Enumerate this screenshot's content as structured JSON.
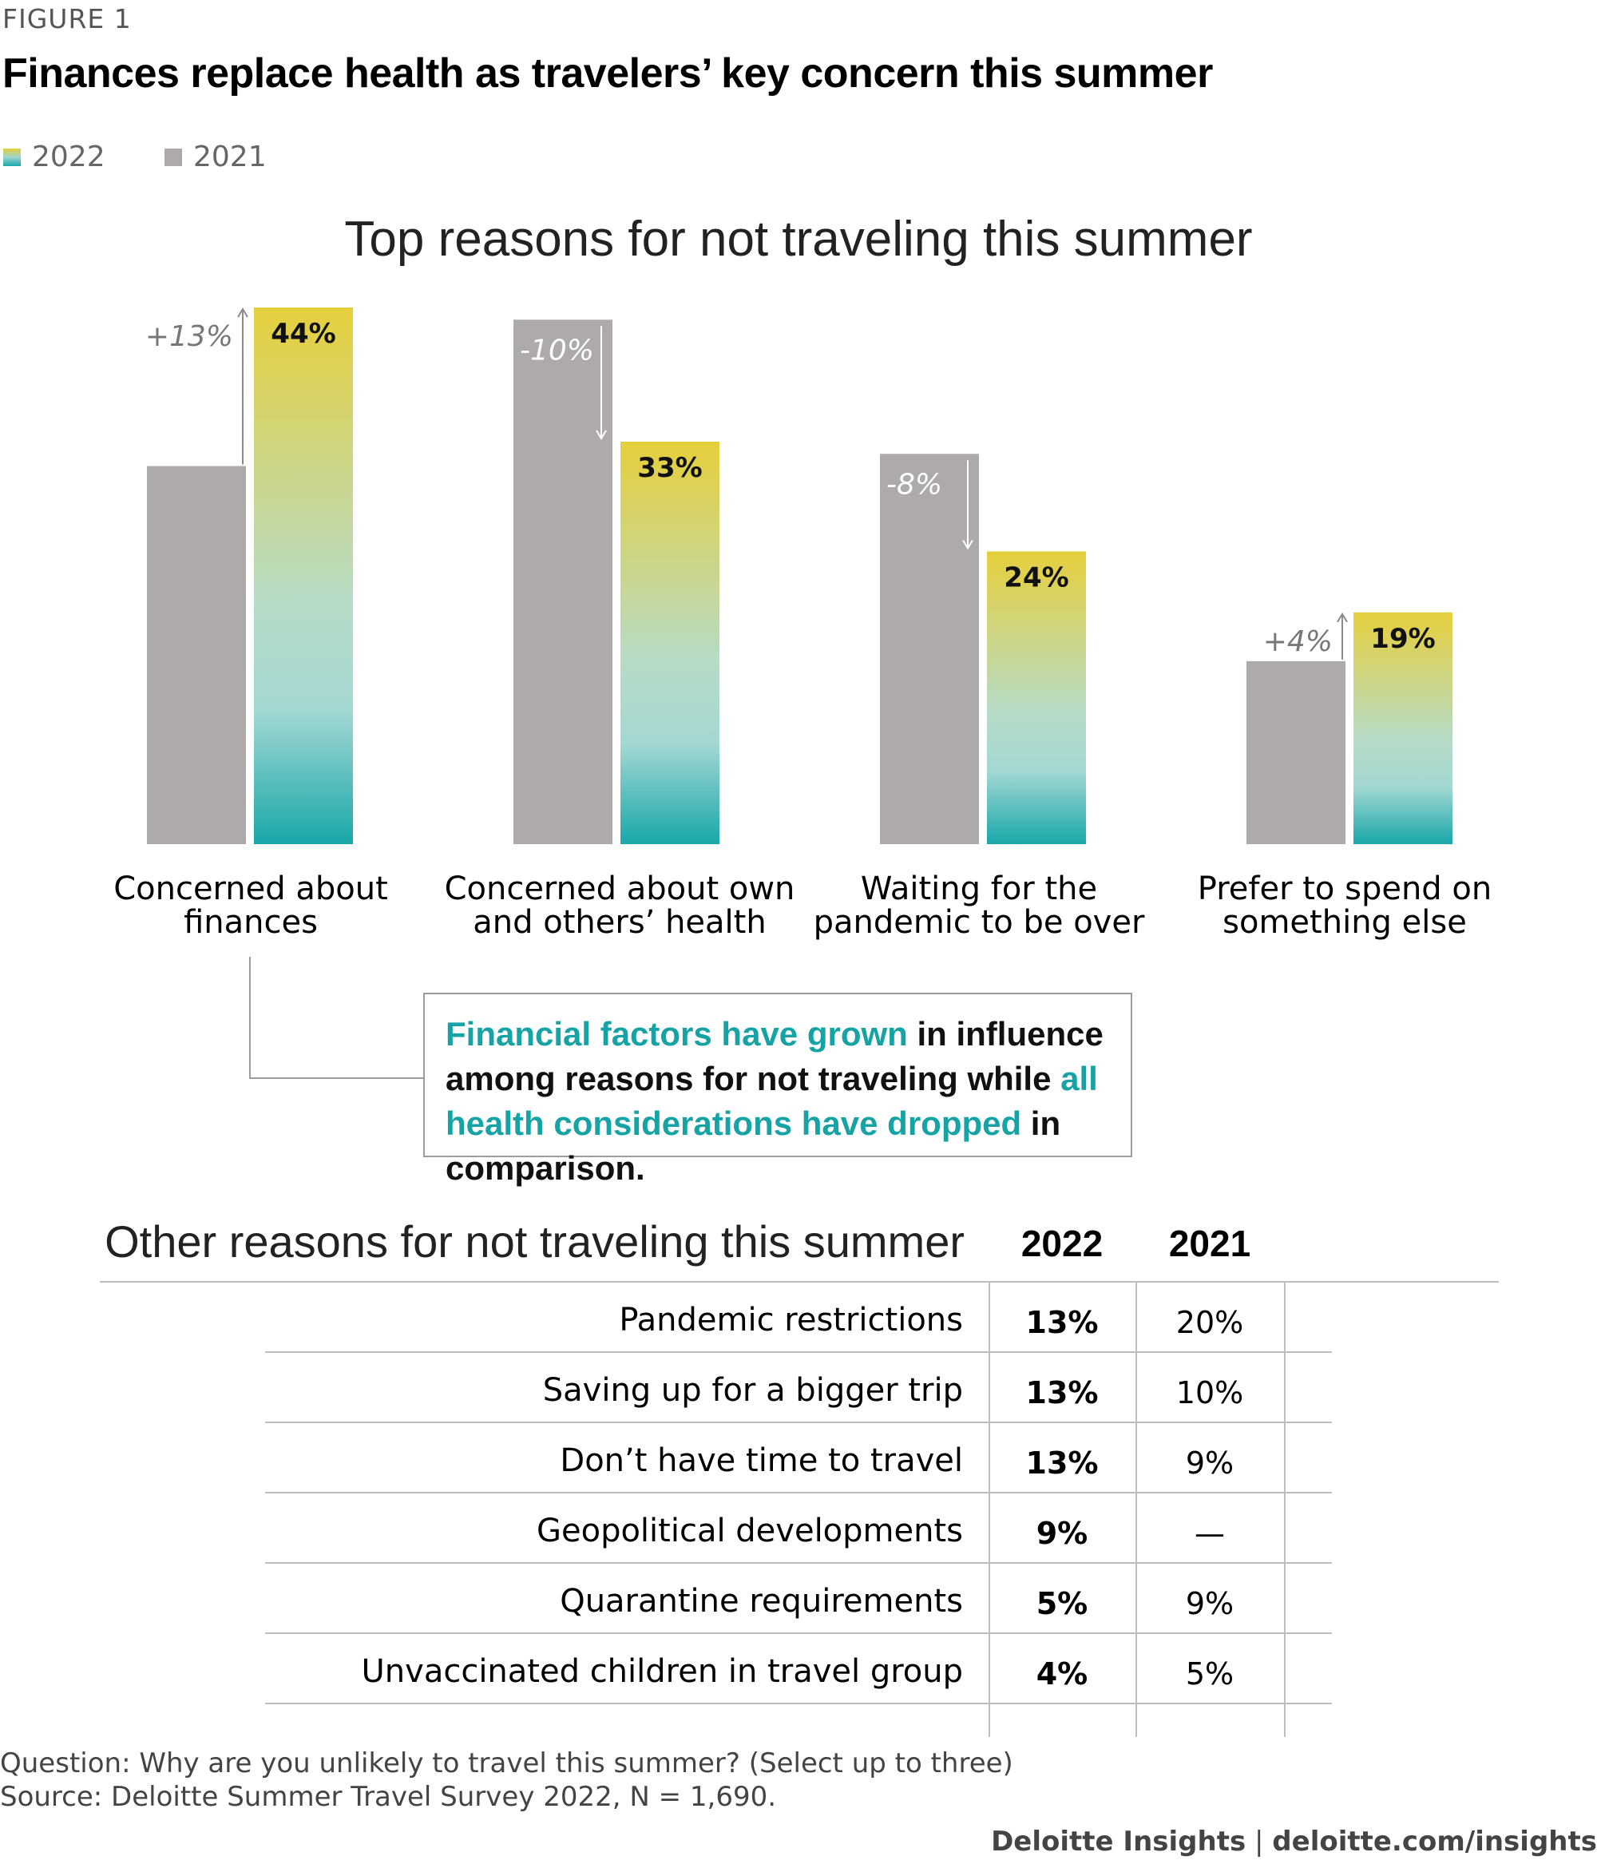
{
  "figure_label": "FIGURE 1",
  "title": "Finances replace health as travelers’ key concern this summer",
  "legend": [
    {
      "label": "2022",
      "color": "gradient"
    },
    {
      "label": "2021",
      "color": "#aeaaaa"
    }
  ],
  "colors": {
    "bar_2021": "#aeaaaa",
    "gradient_top": "#e6cf3c",
    "gradient_mid": "#a9d8d0",
    "gradient_bottom": "#18a7a9",
    "highlight_text": "#16a3a5",
    "grid": "#bdbdbd"
  },
  "chart_data": {
    "type": "bar",
    "title": "Top reasons for not traveling this summer",
    "categories": [
      "Concerned about finances",
      "Concerned about own and others’ health",
      "Waiting for the pandemic to be over",
      "Prefer to spend on something else"
    ],
    "category_lines": [
      [
        "Concerned about",
        "finances"
      ],
      [
        "Concerned about own",
        "and others’ health"
      ],
      [
        "Waiting for the",
        "pandemic to be over"
      ],
      [
        "Prefer to spend on",
        "something else"
      ]
    ],
    "series": [
      {
        "name": "2021",
        "values": [
          31,
          43,
          32,
          15
        ]
      },
      {
        "name": "2022",
        "values": [
          44,
          33,
          24,
          19
        ],
        "labels": [
          "44%",
          "33%",
          "24%",
          "19%"
        ]
      }
    ],
    "changes": [
      "+13%",
      "-10%",
      "-8%",
      "+4%"
    ],
    "change_direction": [
      "up",
      "down",
      "down",
      "up"
    ],
    "ylim": [
      0,
      44
    ],
    "grid": false,
    "legend_position": "top-left"
  },
  "callout": {
    "part1": "Financial factors have grown",
    "part2": " in influence among reasons for not traveling while ",
    "part3": "all health considerations have dropped",
    "part4": " in comparison."
  },
  "table": {
    "title": "Other reasons for not traveling this summer",
    "columns": [
      "2022",
      "2021"
    ],
    "rows": [
      {
        "label": "Pandemic restrictions",
        "v2022": "13%",
        "v2021": "20%"
      },
      {
        "label": "Saving up for a bigger trip",
        "v2022": "13%",
        "v2021": "10%"
      },
      {
        "label": "Don’t have time to travel",
        "v2022": "13%",
        "v2021": "9%"
      },
      {
        "label": "Geopolitical developments",
        "v2022": "9%",
        "v2021": "—"
      },
      {
        "label": "Quarantine requirements",
        "v2022": "5%",
        "v2021": "9%"
      },
      {
        "label": "Unvaccinated children in travel group",
        "v2022": "4%",
        "v2021": "5%"
      }
    ]
  },
  "notes": {
    "question": "Question: Why are you unlikely to travel this summer? (Select up to three)",
    "source": "Source: Deloitte Summer Travel Survey 2022, N = 1,690."
  },
  "footer": {
    "brand": "Deloitte Insights",
    "separator": " | ",
    "url": "deloitte.com/insights"
  }
}
